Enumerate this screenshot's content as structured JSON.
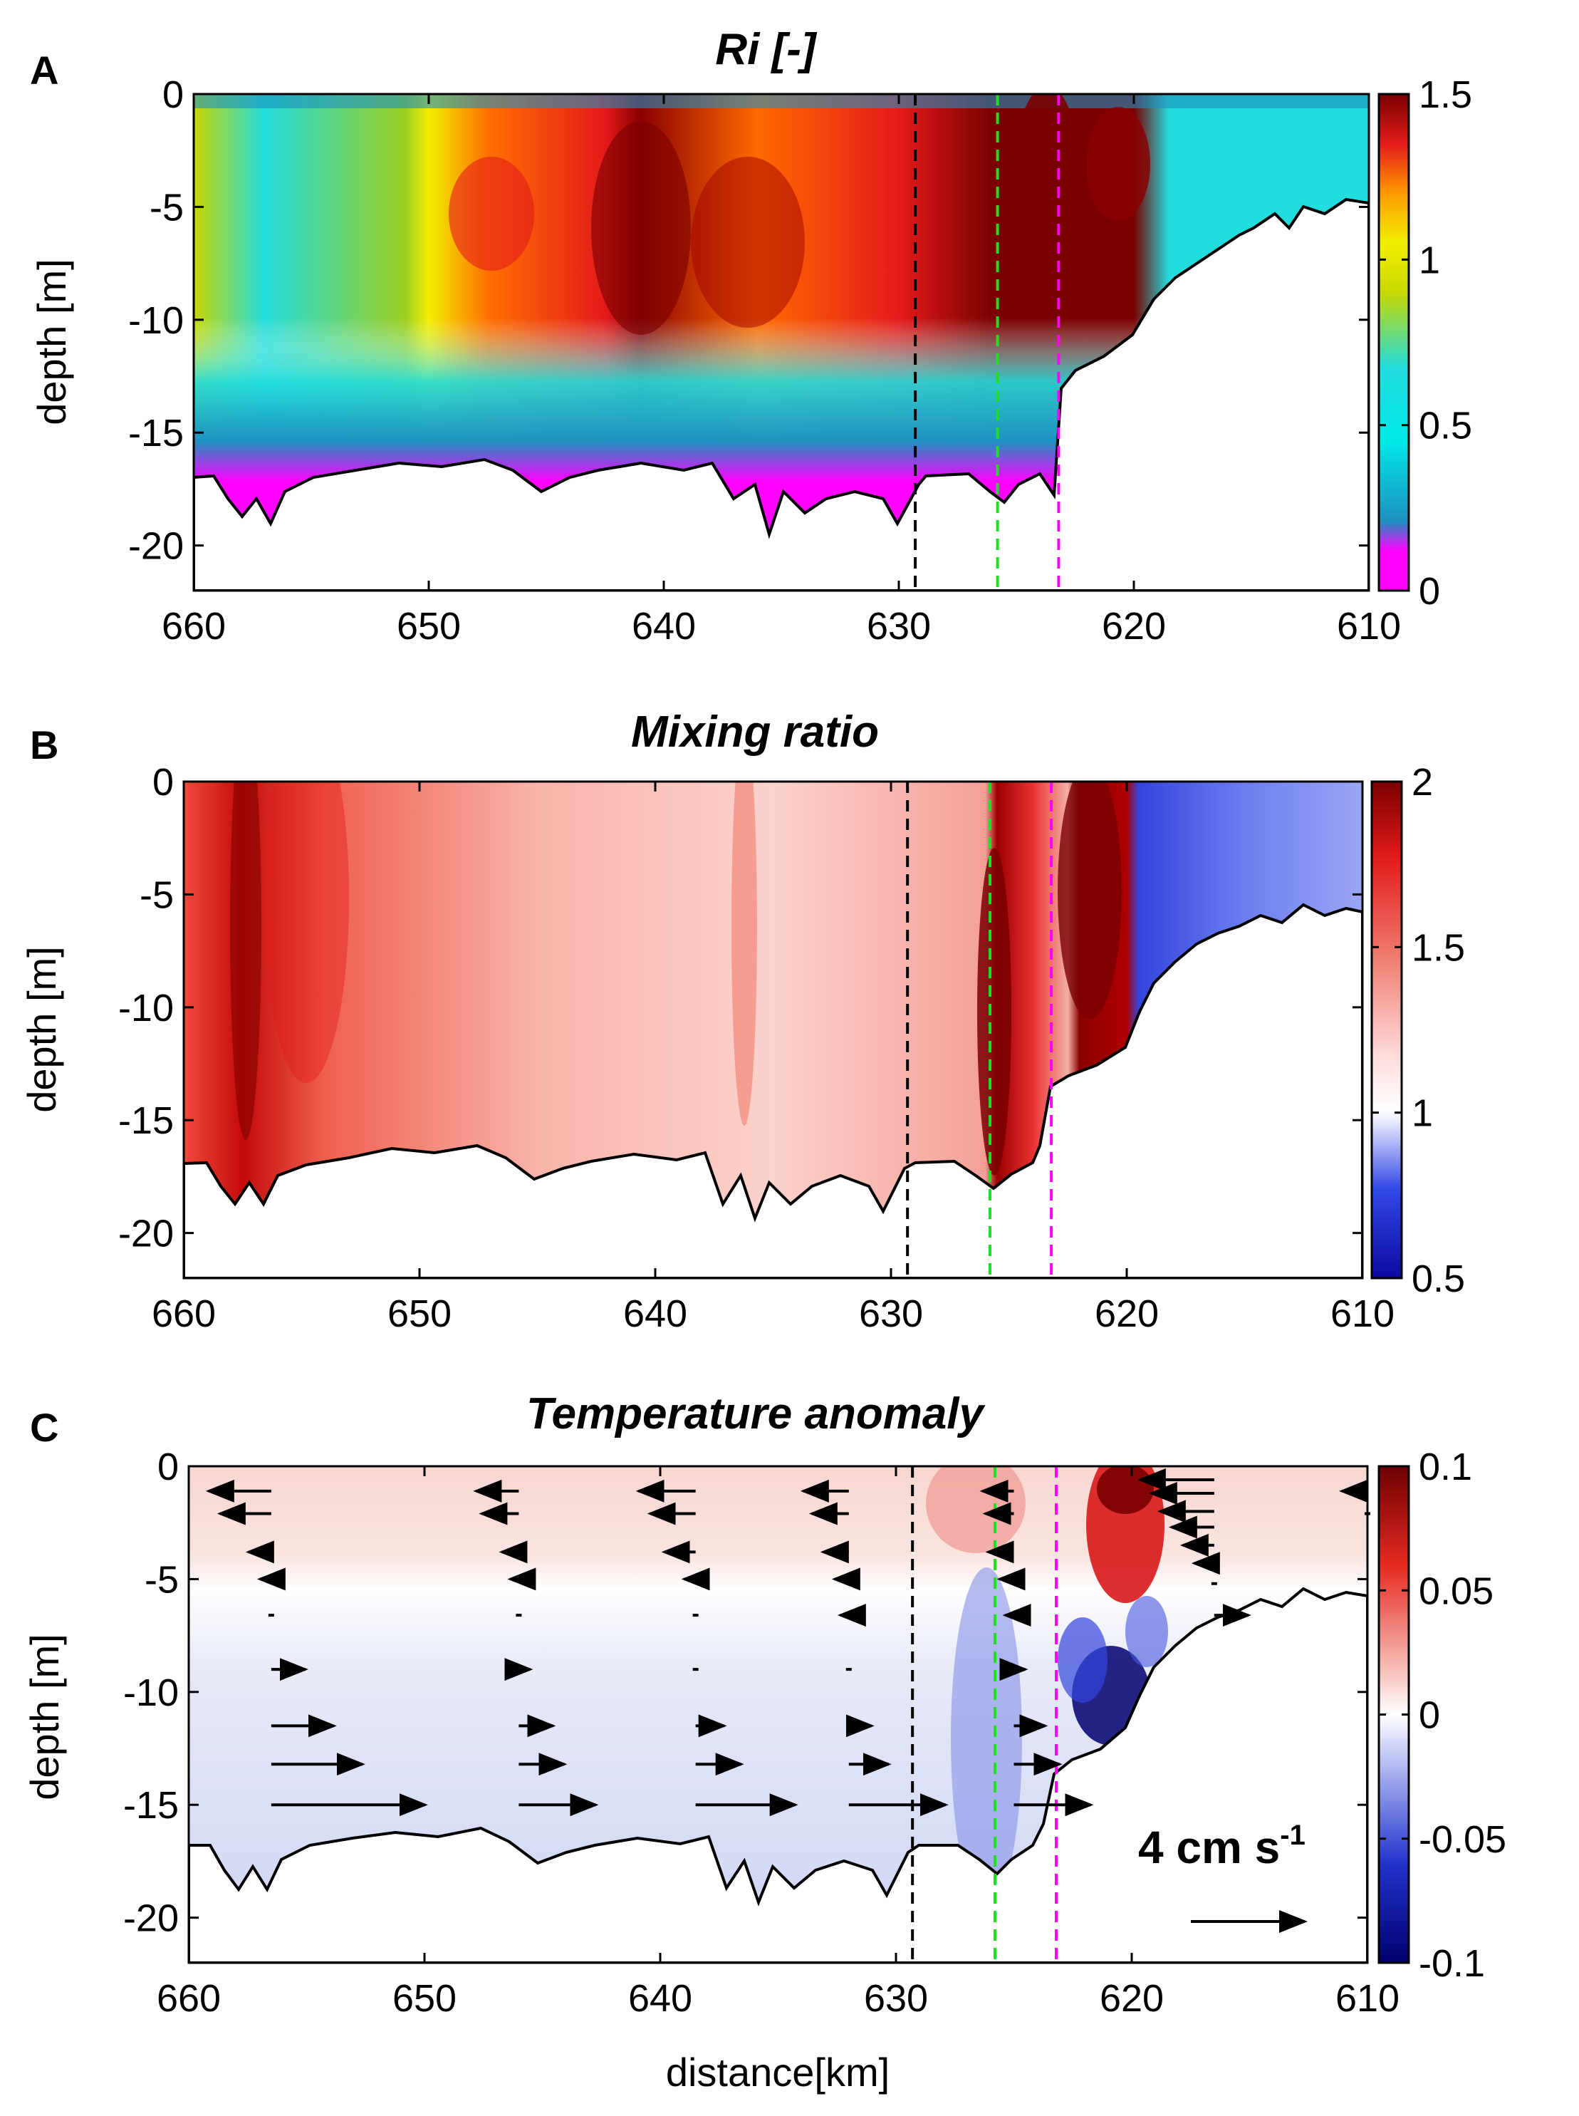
{
  "chart_data": [
    {
      "panel": "A",
      "type": "heatmap",
      "title": "Ri [-]",
      "xlabel": "",
      "ylabel": "depth [m]",
      "xlim": [
        660,
        610
      ],
      "ylim": [
        -22,
        0
      ],
      "xticks": [
        660,
        650,
        640,
        630,
        620,
        610
      ],
      "yticks": [
        0,
        -5,
        -10,
        -15,
        -20
      ],
      "colorbar": {
        "min": 0,
        "max": 1.5,
        "ticks": [
          "1.5",
          "1",
          "0.5",
          "0"
        ],
        "tick_values": [
          1.5,
          1,
          0.5,
          0
        ]
      },
      "lines": [
        {
          "name": "black-dashed",
          "x": 629.3,
          "color": "#000000"
        },
        {
          "name": "green-dashed",
          "x": 625.8,
          "color": "#22dd22"
        },
        {
          "name": "magenta-dashed",
          "x": 623.2,
          "color": "#ff00ff"
        }
      ]
    },
    {
      "panel": "B",
      "type": "heatmap",
      "title": "Mixing ratio",
      "xlabel": "",
      "ylabel": "depth [m]",
      "xlim": [
        660,
        610
      ],
      "ylim": [
        -22,
        0
      ],
      "xticks": [
        660,
        650,
        640,
        630,
        620,
        610
      ],
      "yticks": [
        0,
        -5,
        -10,
        -15,
        -20
      ],
      "colorbar": {
        "min": 0.5,
        "max": 2,
        "ticks": [
          "2",
          "1.5",
          "1",
          "0.5"
        ],
        "tick_values": [
          2,
          1.5,
          1,
          0.5
        ]
      },
      "lines": [
        {
          "name": "black-dashed",
          "x": 629.3,
          "color": "#000000"
        },
        {
          "name": "green-dashed",
          "x": 625.8,
          "color": "#22dd22"
        },
        {
          "name": "magenta-dashed",
          "x": 623.2,
          "color": "#ff00ff"
        }
      ]
    },
    {
      "panel": "C",
      "type": "heatmap",
      "title": "Temperature anomaly",
      "xlabel": "distance[km]",
      "ylabel": "depth [m]",
      "xlim": [
        660,
        610
      ],
      "ylim": [
        -22,
        0
      ],
      "xticks": [
        660,
        650,
        640,
        630,
        620,
        610
      ],
      "yticks": [
        0,
        -5,
        -10,
        -15,
        -20
      ],
      "colorbar": {
        "min": -0.1,
        "max": 0.1,
        "ticks": [
          "0.1",
          "0.05",
          "0",
          "-0.05",
          "-0.1"
        ],
        "tick_values": [
          0.1,
          0.05,
          0,
          -0.05,
          -0.1
        ]
      },
      "lines": [
        {
          "name": "black-dashed",
          "x": 629.3,
          "color": "#000000"
        },
        {
          "name": "green-dashed",
          "x": 625.8,
          "color": "#22dd22"
        },
        {
          "name": "magenta-dashed",
          "x": 623.2,
          "color": "#ff00ff"
        }
      ],
      "velocity_scale": {
        "label": "4 cm s",
        "exponent": "-1",
        "magnitude_cms": 4
      },
      "velocity_arrows": [
        {
          "x": 656.5,
          "depth": -1.1,
          "u": -2.2
        },
        {
          "x": 656.5,
          "depth": -2.1,
          "u": -1.8
        },
        {
          "x": 656.5,
          "depth": -3.8,
          "u": -0.8
        },
        {
          "x": 656.5,
          "depth": -5.0,
          "u": -0.4
        },
        {
          "x": 656.5,
          "depth": -6.6,
          "u": 0.2
        },
        {
          "x": 656.5,
          "depth": -9.0,
          "u": 1.2
        },
        {
          "x": 656.5,
          "depth": -11.5,
          "u": 2.2
        },
        {
          "x": 656.5,
          "depth": -13.2,
          "u": 3.2
        },
        {
          "x": 656.5,
          "depth": -15.0,
          "u": 5.4
        },
        {
          "x": 646.0,
          "depth": -1.1,
          "u": -1.5
        },
        {
          "x": 646.0,
          "depth": -2.1,
          "u": -1.3
        },
        {
          "x": 646.0,
          "depth": -3.8,
          "u": -0.6
        },
        {
          "x": 646.0,
          "depth": -5.0,
          "u": -0.3
        },
        {
          "x": 646.0,
          "depth": -6.6,
          "u": 0.1
        },
        {
          "x": 646.0,
          "depth": -9.0,
          "u": 0.4
        },
        {
          "x": 646.0,
          "depth": -11.5,
          "u": 1.2
        },
        {
          "x": 646.0,
          "depth": -13.2,
          "u": 1.6
        },
        {
          "x": 646.0,
          "depth": -15.0,
          "u": 2.7
        },
        {
          "x": 638.5,
          "depth": -1.1,
          "u": -2.0
        },
        {
          "x": 638.5,
          "depth": -2.1,
          "u": -1.6
        },
        {
          "x": 638.5,
          "depth": -3.8,
          "u": -1.1
        },
        {
          "x": 638.5,
          "depth": -5.0,
          "u": -0.4
        },
        {
          "x": 638.5,
          "depth": -6.6,
          "u": -0.2
        },
        {
          "x": 638.5,
          "depth": -9.0,
          "u": 0.1
        },
        {
          "x": 638.5,
          "depth": -11.5,
          "u": 1.0
        },
        {
          "x": 638.5,
          "depth": -13.2,
          "u": 1.6
        },
        {
          "x": 638.5,
          "depth": -15.0,
          "u": 3.5
        },
        {
          "x": 632.0,
          "depth": -1.1,
          "u": -1.6
        },
        {
          "x": 632.0,
          "depth": -2.1,
          "u": -1.3
        },
        {
          "x": 632.0,
          "depth": -3.8,
          "u": -0.9
        },
        {
          "x": 632.0,
          "depth": -5.0,
          "u": -0.5
        },
        {
          "x": 632.0,
          "depth": -6.6,
          "u": -0.3
        },
        {
          "x": 632.0,
          "depth": -9.0,
          "u": 0.1
        },
        {
          "x": 632.0,
          "depth": -11.5,
          "u": 0.8
        },
        {
          "x": 632.0,
          "depth": -13.2,
          "u": 1.4
        },
        {
          "x": 632.0,
          "depth": -15.0,
          "u": 3.4
        },
        {
          "x": 625.0,
          "depth": -1.1,
          "u": -1.1
        },
        {
          "x": 625.0,
          "depth": -2.1,
          "u": -1.0
        },
        {
          "x": 625.0,
          "depth": -3.8,
          "u": -0.9
        },
        {
          "x": 625.0,
          "depth": -5.0,
          "u": -0.5
        },
        {
          "x": 625.0,
          "depth": -6.6,
          "u": -0.3
        },
        {
          "x": 625.0,
          "depth": -9.0,
          "u": 0.4
        },
        {
          "x": 625.0,
          "depth": -11.5,
          "u": 1.1
        },
        {
          "x": 625.0,
          "depth": -13.2,
          "u": 1.6
        },
        {
          "x": 625.0,
          "depth": -15.0,
          "u": 2.7
        },
        {
          "x": 616.5,
          "depth": -0.6,
          "u": -2.6
        },
        {
          "x": 616.5,
          "depth": -1.2,
          "u": -2.2
        },
        {
          "x": 616.5,
          "depth": -2.0,
          "u": -1.9
        },
        {
          "x": 616.5,
          "depth": -2.7,
          "u": -1.5
        },
        {
          "x": 616.5,
          "depth": -3.5,
          "u": -1.1
        },
        {
          "x": 616.5,
          "depth": -4.3,
          "u": -0.7
        },
        {
          "x": 616.5,
          "depth": -5.2,
          "u": 0.2
        },
        {
          "x": 616.5,
          "depth": -6.6,
          "u": 1.2
        },
        {
          "x": 610.0,
          "depth": -1.1,
          "u": -0.9
        },
        {
          "x": 610.0,
          "depth": -2.1,
          "u": -0.2
        }
      ]
    }
  ]
}
